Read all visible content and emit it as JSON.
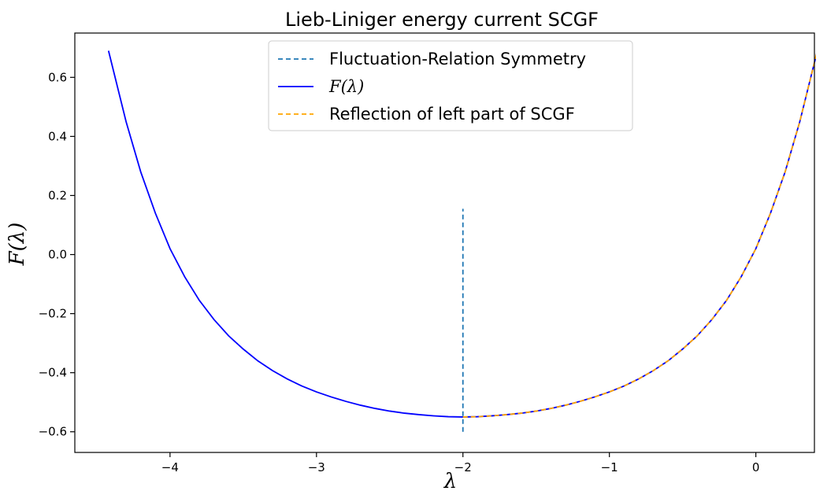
{
  "chart_data": {
    "type": "line",
    "title": "Lieb-Liniger energy current SCGF",
    "xlabel": "λ",
    "ylabel": "F(λ)",
    "xlim": [
      -4.65,
      0.4
    ],
    "ylim": [
      -0.67,
      0.75
    ],
    "xticks": [
      -4,
      -3,
      -2,
      -1,
      0
    ],
    "xtick_labels": [
      "−4",
      "−3",
      "−2",
      "−1",
      "0"
    ],
    "yticks": [
      -0.6,
      -0.4,
      -0.2,
      0.0,
      0.2,
      0.4,
      0.6
    ],
    "ytick_labels": [
      "−0.6",
      "−0.4",
      "−0.2",
      "0.0",
      "0.2",
      "0.4",
      "0.6"
    ],
    "grid": false,
    "legend_position": "top-center",
    "series": [
      {
        "name": "Fluctuation-Relation Symmetry",
        "style": "dashed",
        "color": "#1f77b4",
        "x": [
          -2.0,
          -2.0
        ],
        "y": [
          -0.6,
          0.155
        ]
      },
      {
        "name": "F(λ)",
        "style": "solid",
        "color": "#0000ff",
        "x": [
          -4.42,
          -4.3,
          -4.2,
          -4.1,
          -4.0,
          -3.9,
          -3.8,
          -3.7,
          -3.6,
          -3.5,
          -3.4,
          -3.3,
          -3.2,
          -3.1,
          -3.0,
          -2.9,
          -2.8,
          -2.7,
          -2.6,
          -2.5,
          -2.4,
          -2.3,
          -2.2,
          -2.1,
          -2.0,
          -1.9,
          -1.8,
          -1.7,
          -1.6,
          -1.5,
          -1.4,
          -1.3,
          -1.2,
          -1.1,
          -1.0,
          -0.9,
          -0.8,
          -0.7,
          -0.6,
          -0.5,
          -0.4,
          -0.3,
          -0.2,
          -0.1,
          0.0,
          0.1,
          0.2,
          0.3,
          0.42
        ],
        "y": [
          0.69,
          0.45,
          0.28,
          0.14,
          0.02,
          -0.075,
          -0.155,
          -0.22,
          -0.275,
          -0.32,
          -0.36,
          -0.393,
          -0.421,
          -0.445,
          -0.465,
          -0.482,
          -0.497,
          -0.51,
          -0.521,
          -0.53,
          -0.537,
          -0.542,
          -0.546,
          -0.549,
          -0.55,
          -0.549,
          -0.546,
          -0.542,
          -0.537,
          -0.53,
          -0.521,
          -0.51,
          -0.497,
          -0.482,
          -0.465,
          -0.445,
          -0.421,
          -0.393,
          -0.36,
          -0.32,
          -0.275,
          -0.22,
          -0.155,
          -0.075,
          0.02,
          0.14,
          0.28,
          0.45,
          0.69
        ]
      },
      {
        "name": "Reflection of left part of SCGF",
        "style": "dashed",
        "color": "#ffa500",
        "x": [
          -2.0,
          -1.9,
          -1.8,
          -1.7,
          -1.6,
          -1.5,
          -1.4,
          -1.3,
          -1.2,
          -1.1,
          -1.0,
          -0.9,
          -0.8,
          -0.7,
          -0.6,
          -0.5,
          -0.4,
          -0.3,
          -0.2,
          -0.1,
          0.0,
          0.1,
          0.2,
          0.3,
          0.42
        ],
        "y": [
          -0.55,
          -0.549,
          -0.546,
          -0.542,
          -0.537,
          -0.53,
          -0.521,
          -0.51,
          -0.497,
          -0.482,
          -0.465,
          -0.445,
          -0.421,
          -0.393,
          -0.36,
          -0.32,
          -0.275,
          -0.22,
          -0.155,
          -0.075,
          0.02,
          0.14,
          0.28,
          0.45,
          0.69
        ]
      }
    ]
  }
}
